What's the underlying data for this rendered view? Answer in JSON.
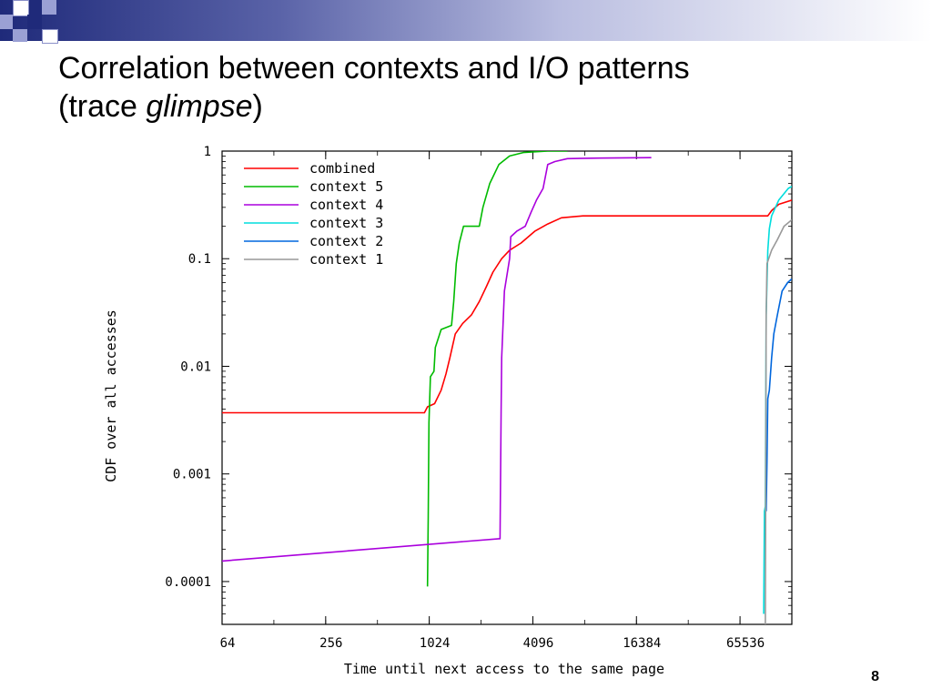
{
  "slide": {
    "title_line1": "Correlation between contexts and I/O patterns",
    "title_line2_prefix": "(trace ",
    "title_line2_italic": "glimpse",
    "title_line2_suffix": ")",
    "page_number": "8"
  },
  "chart_data": {
    "type": "line",
    "xlabel": "Time until next access to the same page",
    "ylabel": "CDF over all accesses",
    "x_scale": "log2",
    "y_scale": "log10",
    "xlim": [
      64,
      131072
    ],
    "ylim": [
      4e-05,
      1
    ],
    "x_ticks": [
      64,
      256,
      1024,
      4096,
      16384,
      65536
    ],
    "x_tick_labels": [
      "64",
      "256",
      "1024",
      "4096",
      "16384",
      "65536"
    ],
    "y_ticks": [
      0.0001,
      0.001,
      0.01,
      0.1,
      1
    ],
    "y_tick_labels": [
      "0.0001",
      "0.001",
      "0.01",
      "0.1",
      "1"
    ],
    "grid": false,
    "legend_position": "top-left",
    "series": [
      {
        "name": "combined",
        "color": "#ff0000",
        "points": [
          [
            64,
            0.0037
          ],
          [
            960,
            0.0037
          ],
          [
            1000,
            0.0042
          ],
          [
            1100,
            0.0045
          ],
          [
            1200,
            0.006
          ],
          [
            1280,
            0.0085
          ],
          [
            1350,
            0.012
          ],
          [
            1450,
            0.02
          ],
          [
            1600,
            0.025
          ],
          [
            1800,
            0.03
          ],
          [
            2000,
            0.04
          ],
          [
            2200,
            0.055
          ],
          [
            2400,
            0.075
          ],
          [
            2700,
            0.1
          ],
          [
            3000,
            0.12
          ],
          [
            3500,
            0.14
          ],
          [
            4200,
            0.18
          ],
          [
            5000,
            0.21
          ],
          [
            6000,
            0.24
          ],
          [
            8000,
            0.25
          ],
          [
            20000,
            0.25
          ],
          [
            60000,
            0.25
          ],
          [
            95000,
            0.25
          ],
          [
            100000,
            0.28
          ],
          [
            110000,
            0.32
          ],
          [
            131072,
            0.35
          ]
        ]
      },
      {
        "name": "context 5",
        "color": "#00bb00",
        "points": [
          [
            1000,
            9e-05
          ],
          [
            1010,
            0.0004
          ],
          [
            1020,
            0.003
          ],
          [
            1040,
            0.008
          ],
          [
            1090,
            0.009
          ],
          [
            1110,
            0.015
          ],
          [
            1200,
            0.022
          ],
          [
            1380,
            0.024
          ],
          [
            1420,
            0.04
          ],
          [
            1470,
            0.09
          ],
          [
            1530,
            0.14
          ],
          [
            1620,
            0.2
          ],
          [
            2000,
            0.2
          ],
          [
            2100,
            0.3
          ],
          [
            2300,
            0.5
          ],
          [
            2600,
            0.75
          ],
          [
            3000,
            0.9
          ],
          [
            3600,
            0.97
          ],
          [
            5000,
            1.0
          ],
          [
            6500,
            1.0
          ]
        ]
      },
      {
        "name": "context 4",
        "color": "#aa00dd",
        "points": [
          [
            64,
            0.000155
          ],
          [
            2600,
            0.00025
          ],
          [
            2640,
            0.00025
          ],
          [
            2680,
            0.004
          ],
          [
            2700,
            0.012
          ],
          [
            2800,
            0.05
          ],
          [
            3000,
            0.1
          ],
          [
            3050,
            0.16
          ],
          [
            3300,
            0.18
          ],
          [
            3700,
            0.2
          ],
          [
            4000,
            0.27
          ],
          [
            4300,
            0.35
          ],
          [
            4700,
            0.45
          ],
          [
            5000,
            0.75
          ],
          [
            5500,
            0.8
          ],
          [
            6500,
            0.85
          ],
          [
            10000,
            0.86
          ],
          [
            20000,
            0.87
          ]
        ]
      },
      {
        "name": "context 3",
        "color": "#00dddd",
        "points": [
          [
            90000,
            5e-05
          ],
          [
            90800,
            0.00045
          ],
          [
            92000,
            0.0005
          ],
          [
            93000,
            0.03
          ],
          [
            95000,
            0.12
          ],
          [
            97000,
            0.19
          ],
          [
            100000,
            0.25
          ],
          [
            110000,
            0.35
          ],
          [
            125000,
            0.45
          ],
          [
            131072,
            0.47
          ]
        ]
      },
      {
        "name": "context 2",
        "color": "#0066dd",
        "points": [
          [
            93000,
            0.00045
          ],
          [
            94000,
            0.0013
          ],
          [
            95000,
            0.005
          ],
          [
            97000,
            0.006
          ],
          [
            100000,
            0.012
          ],
          [
            103000,
            0.02
          ],
          [
            108000,
            0.03
          ],
          [
            115000,
            0.05
          ],
          [
            124000,
            0.06
          ],
          [
            131072,
            0.065
          ]
        ]
      },
      {
        "name": "context 1",
        "color": "#999999",
        "points": [
          [
            92000,
            4e-05
          ],
          [
            92500,
            0.002
          ],
          [
            93000,
            0.03
          ],
          [
            94000,
            0.09
          ],
          [
            100000,
            0.12
          ],
          [
            108000,
            0.15
          ],
          [
            118000,
            0.2
          ],
          [
            131072,
            0.23
          ]
        ]
      }
    ]
  }
}
